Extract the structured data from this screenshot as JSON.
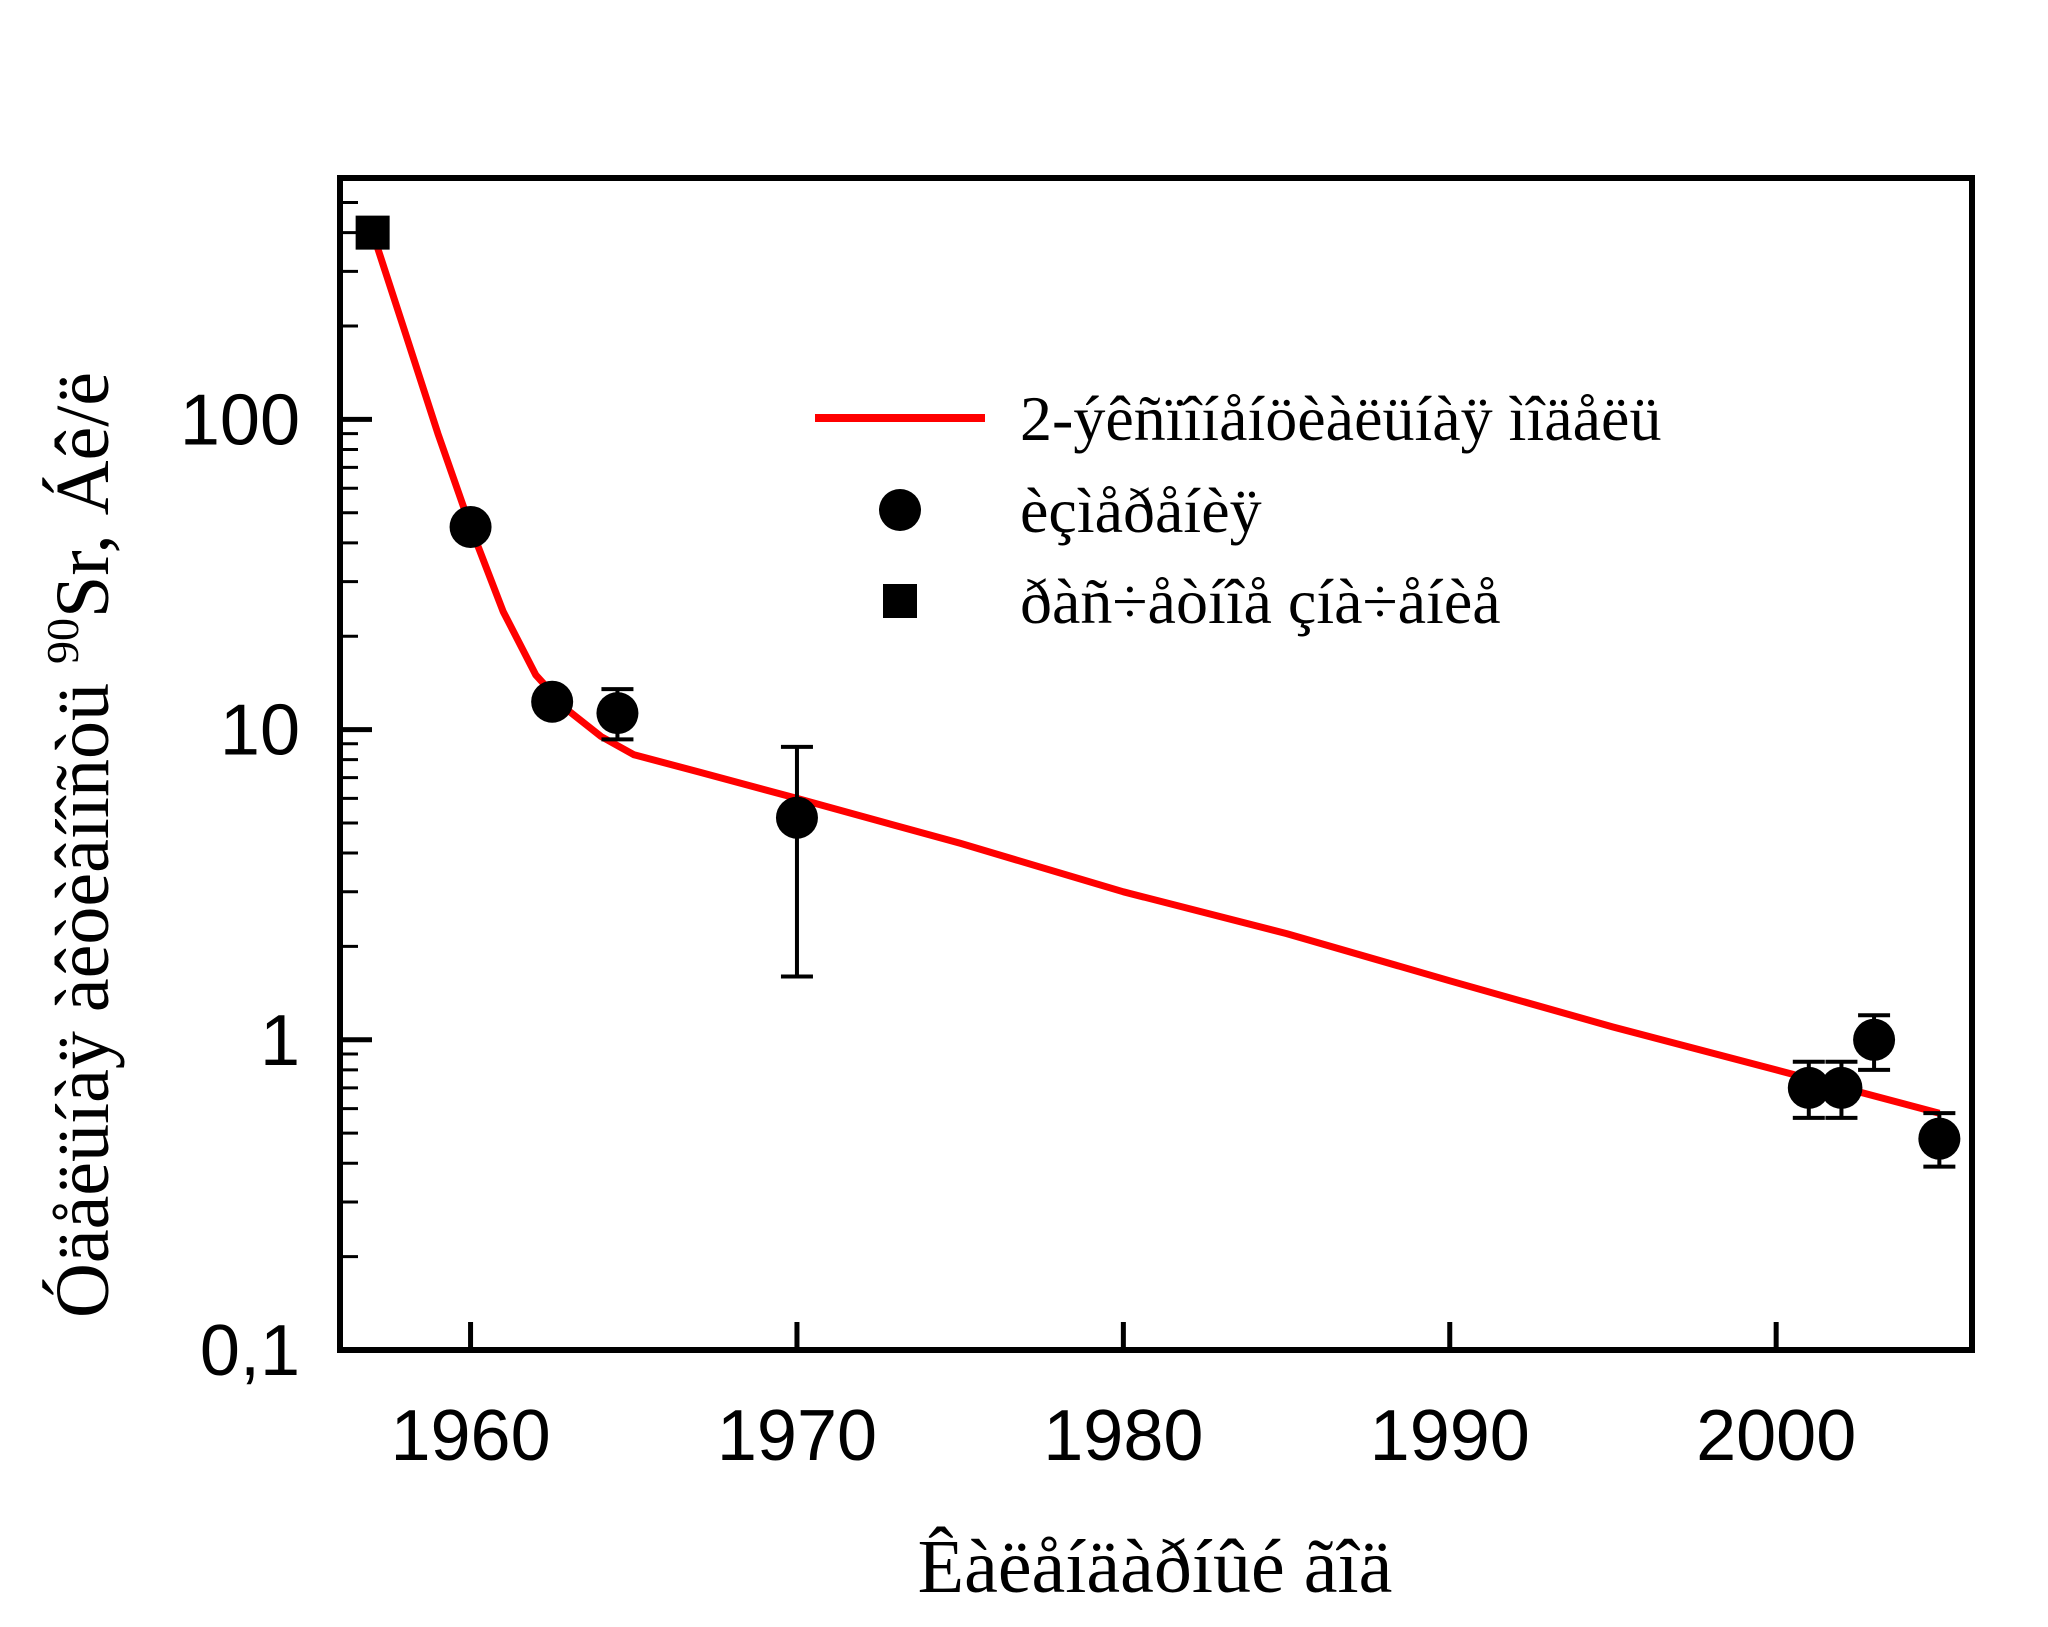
{
  "chart_data": {
    "type": "scatter",
    "xlabel": "Êàëåíäàðíûé ãîä",
    "ylabel": "Óäåëüíàÿ àêòèâíîñòü ",
    "ylabel_sup": "90",
    "ylabel_tail": "Sr, Áê/ë",
    "xlim": [
      1956,
      2006
    ],
    "ylim": [
      0.1,
      600
    ],
    "yscale": "log",
    "grid": false,
    "legend_position": "top-right",
    "x_ticks": [
      1960,
      1970,
      1980,
      1990,
      2000
    ],
    "x_tick_labels": [
      "1960",
      "1970",
      "1980",
      "1990",
      "2000"
    ],
    "y_ticks": [
      0.1,
      1,
      10,
      100
    ],
    "y_tick_labels": [
      "0,1",
      "1",
      "10",
      "100"
    ],
    "series": [
      {
        "name": "2-ýêñïîíåíöèàëüíàÿ ìîäåëü",
        "kind": "line",
        "color": "#ff0000",
        "x": [
          1957,
          1958,
          1959,
          1960,
          1961,
          1962,
          1963,
          1964,
          1965,
          1967,
          1970,
          1975,
          1980,
          1985,
          1990,
          1995,
          2000,
          2005
        ],
        "y": [
          400,
          190,
          90,
          45,
          24,
          15,
          11.5,
          9.5,
          8.3,
          7.3,
          6.0,
          4.3,
          3.0,
          2.2,
          1.55,
          1.1,
          0.8,
          0.58
        ]
      },
      {
        "name": "èçìåðåíèÿ",
        "kind": "scatter",
        "marker": "circle",
        "color": "#000000",
        "x": [
          1960,
          1962.5,
          1964.5,
          1970,
          2001,
          2002,
          2003,
          2005
        ],
        "y": [
          45,
          12.3,
          11.3,
          5.2,
          0.7,
          0.7,
          1.0,
          0.48
        ],
        "err_low": [
          null,
          null,
          9.3,
          1.6,
          0.56,
          0.56,
          0.8,
          0.39
        ],
        "err_high": [
          null,
          null,
          13.5,
          8.8,
          0.85,
          0.85,
          1.2,
          0.58
        ]
      },
      {
        "name": "ðàñ÷åòíîå çíà÷åíèå",
        "kind": "scatter",
        "marker": "square",
        "color": "#000000",
        "x": [
          1957
        ],
        "y": [
          400
        ]
      }
    ]
  }
}
